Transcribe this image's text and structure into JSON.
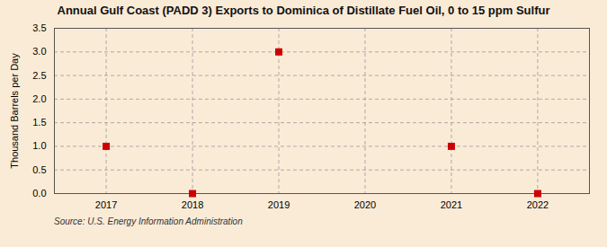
{
  "chart_data": {
    "type": "scatter",
    "title": "Annual Gulf Coast (PADD 3) Exports to Dominica of Distillate Fuel Oil, 0 to 15 ppm Sulfur",
    "y_label": "Thousand Barrels per Day",
    "source": "Source: U.S. Energy Information Administration",
    "x": [
      2017,
      2018,
      2019,
      2021,
      2022
    ],
    "values": [
      1.0,
      0.0,
      3.0,
      1.0,
      0.0
    ],
    "color": "#cc0000",
    "marker": "square",
    "xlim": [
      2016.4,
      2022.6
    ],
    "ylim": [
      0.0,
      3.5
    ],
    "xticks": [
      2017,
      2018,
      2019,
      2020,
      2021,
      2022
    ],
    "yticks": [
      {
        "value": 0.0,
        "label": "0.0"
      },
      0.5,
      {
        "value": 1.0,
        "label": "1.0"
      },
      1.5,
      {
        "value": 2.0,
        "label": "2.0"
      },
      2.5,
      {
        "value": 3.0,
        "label": "3.0"
      },
      3.5
    ],
    "grid": true
  }
}
